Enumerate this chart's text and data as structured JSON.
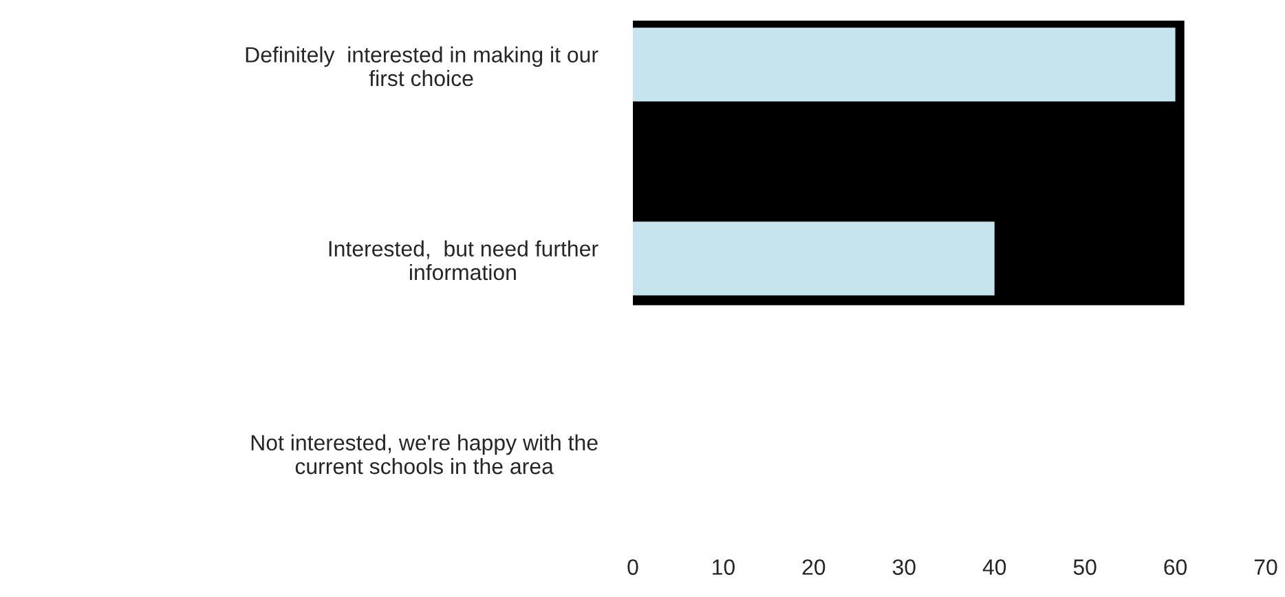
{
  "chart_data": {
    "type": "bar",
    "orientation": "horizontal",
    "categories": [
      "Definitely  interested in making it our\nfirst choice",
      "Interested,  but need further\ninformation",
      "Not interested, we're happy with the\ncurrent schools in the area"
    ],
    "values": [
      60,
      40,
      0
    ],
    "color": "#c5e4ed",
    "xlim": [
      0,
      70
    ],
    "xticks": [
      0,
      10,
      20,
      30,
      40,
      50,
      60,
      70
    ],
    "grid": false,
    "tick_labels": "xy"
  }
}
